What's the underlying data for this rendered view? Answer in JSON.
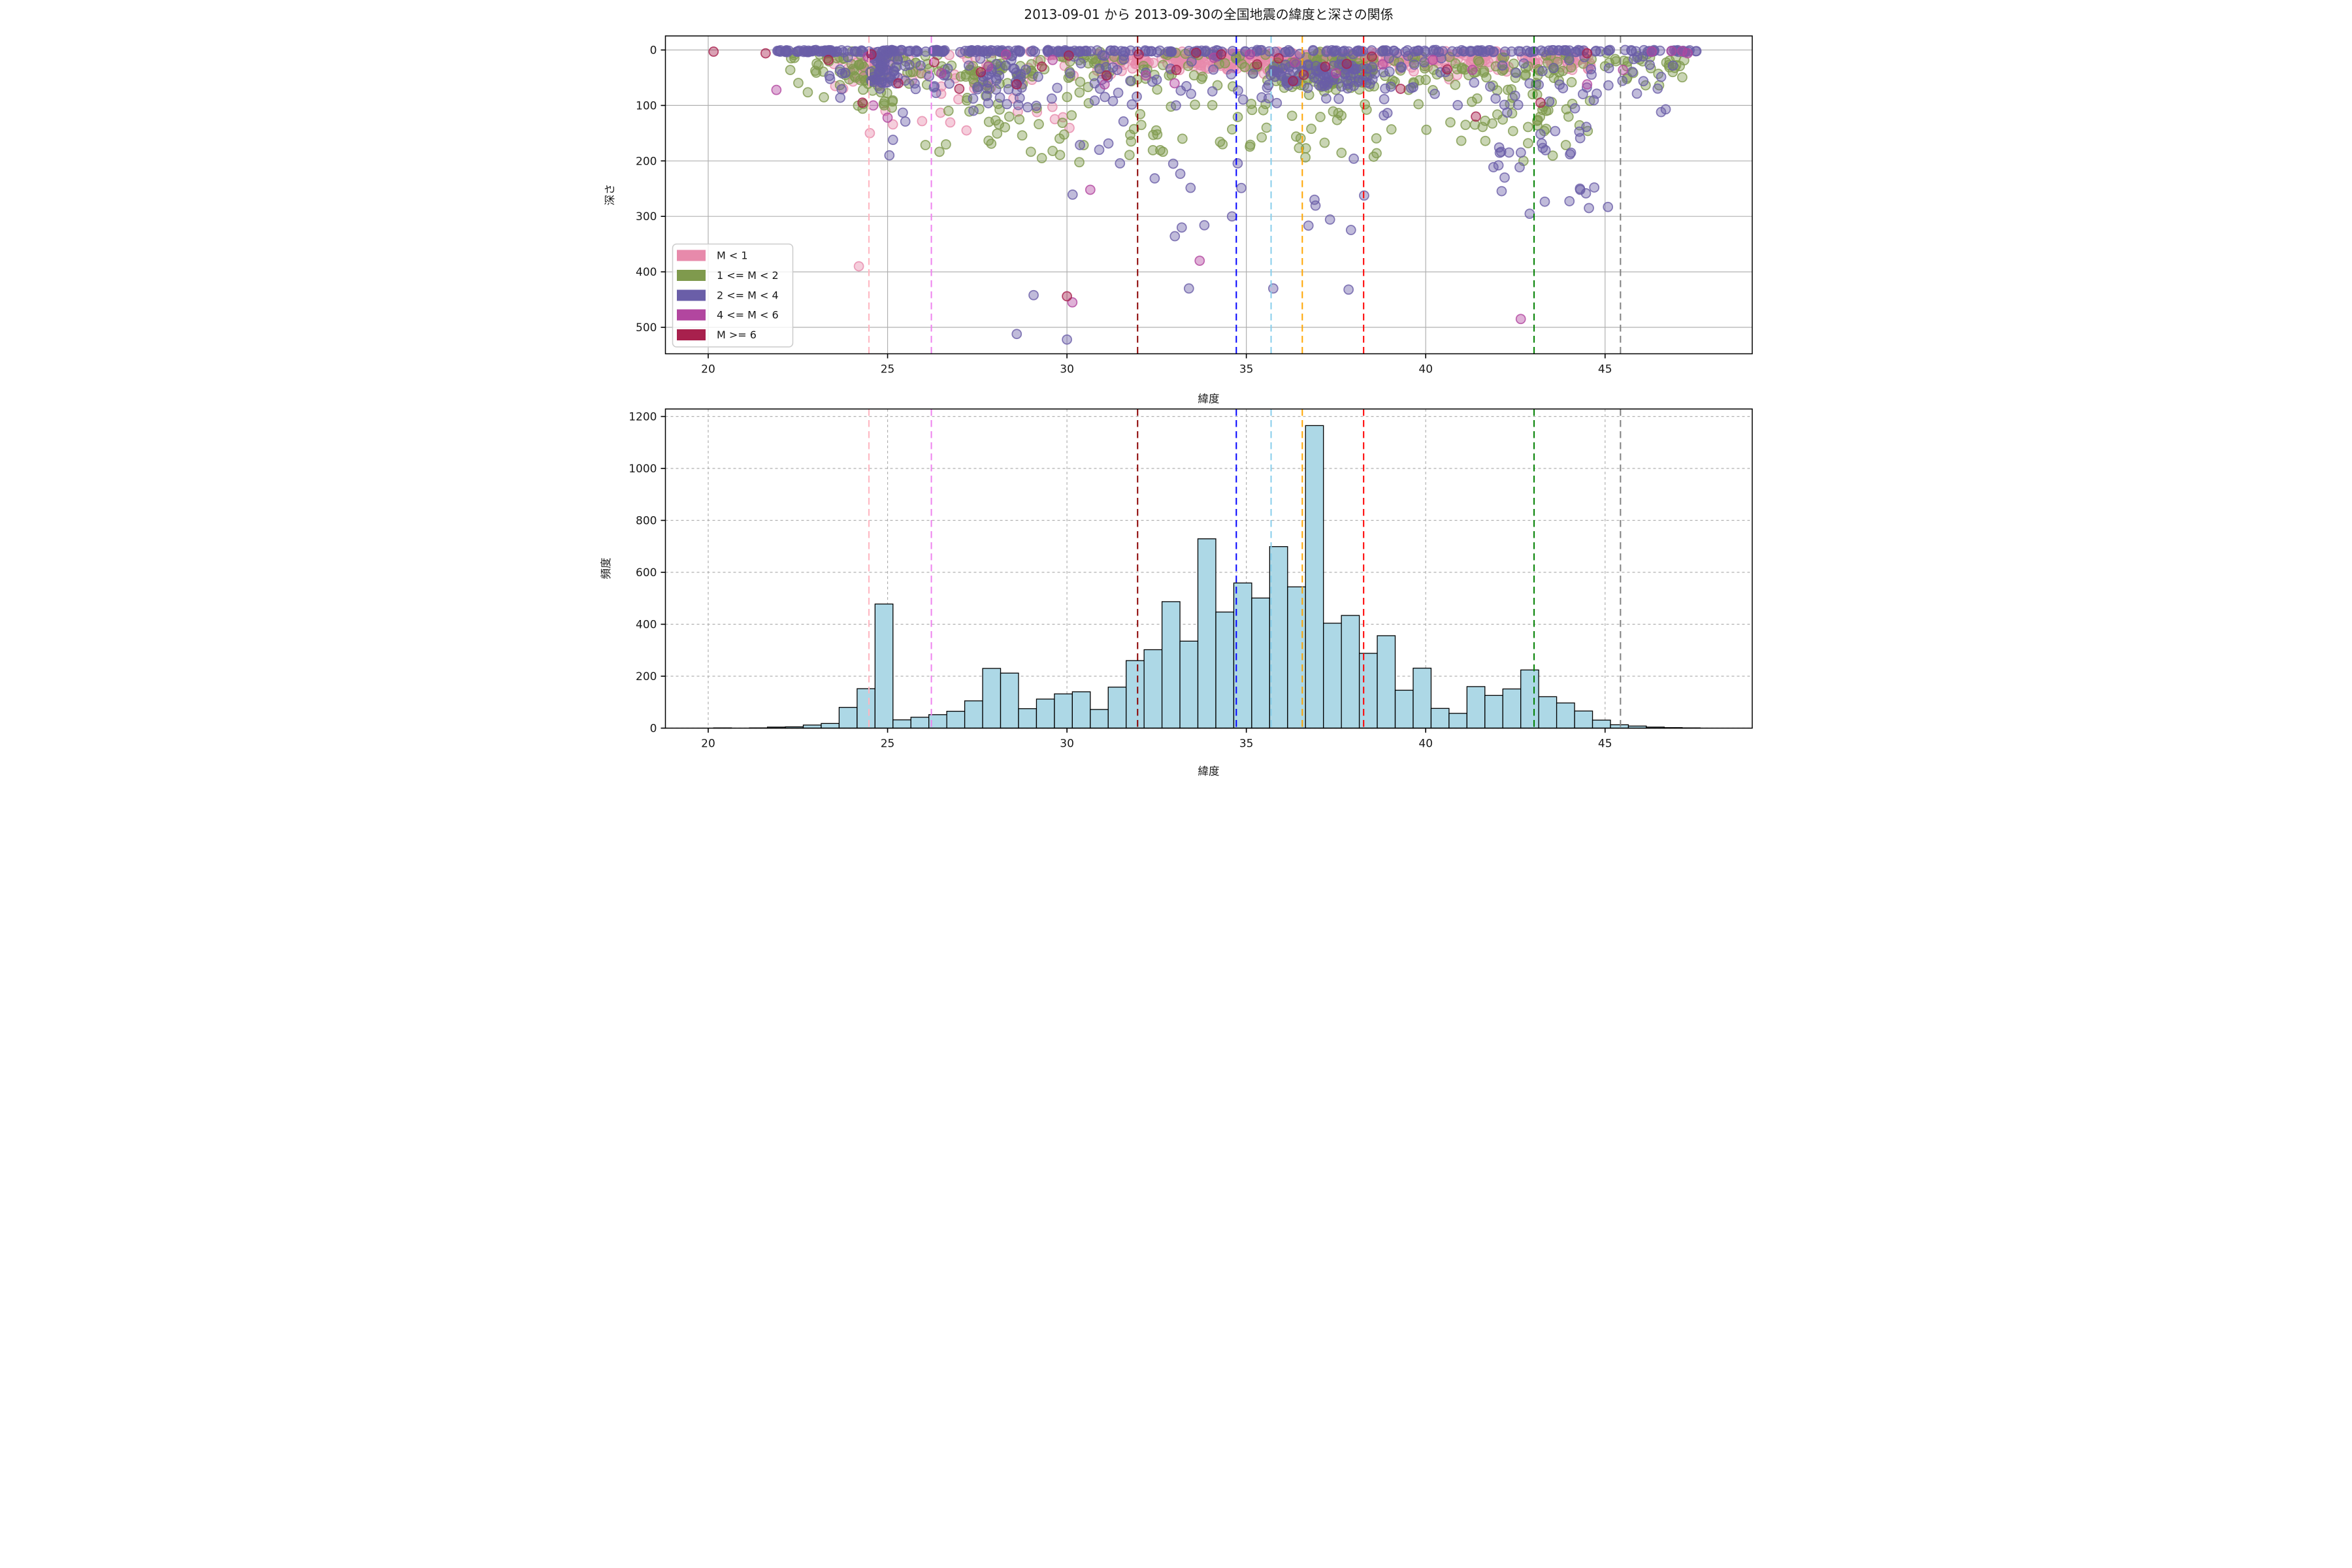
{
  "title": "2013-09-01 から 2013-09-30の全国地震の緯度と深さの関係",
  "scatter_plot": {
    "xlabel": "緯度",
    "ylabel": "深さ",
    "xticks": [
      20,
      25,
      30,
      35,
      40,
      45
    ],
    "yticks": [
      0,
      100,
      200,
      300,
      400,
      500
    ],
    "xlim": [
      18.8,
      49.1
    ],
    "ylim_depth": [
      -25,
      547
    ],
    "grid_style": "solid"
  },
  "hist_plot": {
    "xlabel": "緯度",
    "ylabel": "頻度",
    "xticks": [
      20,
      25,
      30,
      35,
      40,
      45
    ],
    "yticks": [
      0,
      200,
      400,
      600,
      800,
      1000,
      1200
    ],
    "ylim": [
      0,
      1228
    ],
    "grid_style": "dashed"
  },
  "legend": {
    "position": "upper-left",
    "frame_color": "#cccccc",
    "entries": [
      {
        "label": "M < 1",
        "color": "#e78aab"
      },
      {
        "label": "1 <= M < 2",
        "color": "#7f9a4d"
      },
      {
        "label": "2 <= M < 4",
        "color": "#6a5ea8"
      },
      {
        "label": "4 <= M < 6",
        "color": "#b2469f"
      },
      {
        "label": "M >= 6",
        "color": "#a8204d"
      }
    ]
  },
  "reference_lines": [
    {
      "lat": 24.48,
      "color": "#ffb6c1",
      "style": "dashed"
    },
    {
      "lat": 26.22,
      "color": "#ee82ee",
      "style": "dashed"
    },
    {
      "lat": 31.97,
      "color": "#8b0000",
      "style": "dashed"
    },
    {
      "lat": 34.72,
      "color": "#0000ff",
      "style": "dashed"
    },
    {
      "lat": 35.69,
      "color": "#87ceeb",
      "style": "dashed"
    },
    {
      "lat": 36.56,
      "color": "#ffa500",
      "style": "dashed"
    },
    {
      "lat": 38.27,
      "color": "#ff0000",
      "style": "dashed"
    },
    {
      "lat": 43.02,
      "color": "#008000",
      "style": "dashed"
    },
    {
      "lat": 45.43,
      "color": "#808080",
      "style": "dashed"
    }
  ],
  "chart_data": [
    {
      "type": "scatter",
      "xlabel": "緯度",
      "ylabel": "深さ",
      "seed": 7,
      "marker": {
        "radius": 14,
        "fill_opacity": 0.42,
        "edge_opacity": 0.8,
        "edge_width": 3.5
      },
      "series": [
        {
          "name": "M < 1",
          "color": "#e78aab",
          "clusters": [
            {
              "n": 320,
              "lat": [
                30.8,
                44.6
              ],
              "depth_normal": [
                17,
                11
              ],
              "depth_clip": [
                2,
                55
              ]
            },
            {
              "n": 130,
              "lat": [
                32.8,
                38.6
              ],
              "depth_uniform": [
                4,
                38
              ]
            },
            {
              "n": 55,
              "lat": [
                23.5,
                30.8
              ],
              "depth_uniform": [
                3,
                70
              ]
            },
            {
              "n": 30,
              "lat": [
                23.9,
                25.3
              ],
              "depth_uniform": [
                2,
                60
              ]
            },
            {
              "n": 15,
              "lat": [
                24.0,
                31.0
              ],
              "depth_uniform": [
                70,
                150
              ]
            }
          ],
          "points": [
            [
              24.2,
              390
            ],
            [
              27.2,
              145
            ]
          ]
        },
        {
          "name": "1 <= M < 2",
          "color": "#7f9a4d",
          "clusters": [
            {
              "n": 300,
              "lat": [
                22.2,
                47.3
              ],
              "depth_normal": [
                28,
                20
              ],
              "depth_clip": [
                2,
                95
              ]
            },
            {
              "n": 85,
              "lat": [
                26.0,
                45.5
              ],
              "depth_uniform": [
                95,
                205
              ]
            },
            {
              "n": 70,
              "lat": [
                35.8,
                38.6
              ],
              "depth_uniform": [
                12,
                75
              ]
            },
            {
              "n": 30,
              "lat": [
                23.9,
                25.3
              ],
              "depth_uniform": [
                5,
                110
              ]
            },
            {
              "n": 25,
              "lat": [
                27.2,
                28.8
              ],
              "depth_uniform": [
                20,
                160
              ]
            },
            {
              "n": 40,
              "lat": [
                41.0,
                44.6
              ],
              "depth_uniform": [
                30,
                150
              ]
            }
          ],
          "points": [
            [
              29.3,
              195
            ]
          ]
        },
        {
          "name": "2 <= M < 4",
          "color": "#6a5ea8",
          "clusters": [
            {
              "n": 140,
              "lat": [
                21.9,
                30.2
              ],
              "depth_uniform": [
                0,
                4
              ]
            },
            {
              "n": 170,
              "lat": [
                30.2,
                47.6
              ],
              "depth_uniform": [
                0,
                4
              ]
            },
            {
              "n": 175,
              "lat": [
                23.0,
                47.0
              ],
              "depth_normal": [
                45,
                35
              ],
              "depth_clip": [
                5,
                140
              ]
            },
            {
              "n": 70,
              "lat": [
                35.7,
                38.6
              ],
              "depth_uniform": [
                25,
                68
              ]
            },
            {
              "n": 50,
              "lat": [
                24.5,
                25.3
              ],
              "depth_uniform": [
                0,
                60
              ]
            },
            {
              "n": 25,
              "lat": [
                27.2,
                28.8
              ],
              "depth_uniform": [
                5,
                120
              ]
            },
            {
              "n": 26,
              "lat": [
                41.8,
                44.8
              ],
              "depth_uniform": [
                110,
                300
              ]
            },
            {
              "n": 18,
              "lat": [
                30.0,
                40.0
              ],
              "depth_uniform": [
                150,
                340
              ]
            }
          ],
          "points": [
            [
              25.05,
              190
            ],
            [
              25.15,
              162
            ],
            [
              28.6,
              512
            ],
            [
              29.07,
              442
            ],
            [
              30.0,
              522
            ],
            [
              33.4,
              430
            ],
            [
              35.75,
              430
            ],
            [
              37.85,
              432
            ],
            [
              44.3,
              250
            ],
            [
              44.55,
              285
            ],
            [
              45.08,
              283
            ],
            [
              34.6,
              300
            ],
            [
              33.2,
              320
            ],
            [
              36.9,
              270
            ],
            [
              42.2,
              230
            ],
            [
              30.9,
              180
            ]
          ]
        },
        {
          "name": "4 <= M < 6",
          "color": "#b2469f",
          "clusters": [],
          "points": [
            [
              21.9,
              72
            ],
            [
              24.45,
              12
            ],
            [
              24.6,
              100
            ],
            [
              25.0,
              122
            ],
            [
              26.5,
              42
            ],
            [
              27.8,
              30
            ],
            [
              28.3,
              8
            ],
            [
              29.6,
              18
            ],
            [
              30.15,
              455
            ],
            [
              30.65,
              252
            ],
            [
              31.05,
              62
            ],
            [
              32.2,
              46
            ],
            [
              33.0,
              60
            ],
            [
              33.7,
              380
            ],
            [
              34.1,
              14
            ],
            [
              35.1,
              8
            ],
            [
              36.35,
              22
            ],
            [
              37.5,
              42
            ],
            [
              38.8,
              26
            ],
            [
              40.2,
              18
            ],
            [
              41.3,
              36
            ],
            [
              42.65,
              485
            ],
            [
              44.5,
              62
            ],
            [
              45.5,
              36
            ],
            [
              46.3,
              3
            ],
            [
              46.85,
              2
            ],
            [
              47.15,
              2
            ],
            [
              47.3,
              6
            ]
          ]
        },
        {
          "name": "M >= 6",
          "color": "#a8204d",
          "clusters": [],
          "points": [
            [
              20.15,
              3
            ],
            [
              21.6,
              6
            ],
            [
              23.35,
              18
            ],
            [
              24.3,
              95
            ],
            [
              24.55,
              8
            ],
            [
              25.3,
              60
            ],
            [
              26.3,
              22
            ],
            [
              27.0,
              70
            ],
            [
              27.6,
              40
            ],
            [
              28.6,
              62
            ],
            [
              29.3,
              30
            ],
            [
              30.0,
              444
            ],
            [
              30.05,
              10
            ],
            [
              31.1,
              46
            ],
            [
              32.0,
              8
            ],
            [
              33.05,
              36
            ],
            [
              33.6,
              5
            ],
            [
              34.3,
              8
            ],
            [
              35.3,
              26
            ],
            [
              35.9,
              15
            ],
            [
              36.3,
              56
            ],
            [
              36.6,
              45
            ],
            [
              37.2,
              30
            ],
            [
              37.8,
              25
            ],
            [
              38.5,
              12
            ],
            [
              39.3,
              70
            ],
            [
              40.6,
              35
            ],
            [
              41.4,
              120
            ],
            [
              43.2,
              95
            ],
            [
              44.5,
              6
            ]
          ]
        }
      ]
    },
    {
      "type": "histogram",
      "xlabel": "緯度",
      "ylabel": "頻度",
      "bar_color": "#add8e6",
      "bar_edge_color": "#000000",
      "bin_start": 20.15,
      "bin_width": 0.5,
      "values": [
        1,
        0,
        1,
        4,
        5,
        12,
        18,
        80,
        152,
        478,
        32,
        42,
        52,
        65,
        105,
        230,
        212,
        75,
        112,
        132,
        140,
        72,
        158,
        260,
        302,
        487,
        335,
        729,
        447,
        559,
        501,
        699,
        544,
        1165,
        404,
        434,
        288,
        356,
        146,
        231,
        76,
        57,
        160,
        126,
        151,
        224,
        121,
        97,
        66,
        31,
        13,
        8,
        4,
        2,
        1
      ],
      "ylim": [
        0,
        1228
      ]
    }
  ]
}
